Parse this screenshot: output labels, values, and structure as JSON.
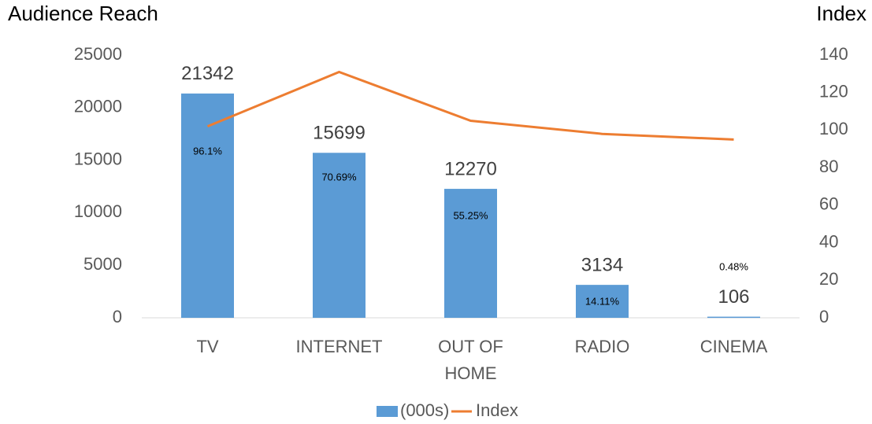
{
  "chart_data": {
    "type": "bar",
    "y_title": "Audience Reach",
    "y2_title": "Index",
    "categories": [
      "TV",
      "INTERNET",
      "OUT OF HOME",
      "RADIO",
      "CINEMA"
    ],
    "series": [
      {
        "name": "(000s)",
        "type": "bar",
        "color": "#5b9bd5",
        "values": [
          21342,
          15699,
          12270,
          3134,
          106
        ]
      },
      {
        "name": "Index",
        "type": "line",
        "axis": "y2",
        "color": "#ed7d31",
        "values": [
          102,
          131,
          105,
          98,
          95
        ]
      }
    ],
    "annotations": [
      "96.1%",
      "70.69%",
      "55.25%",
      "14.11%",
      "0.48%"
    ],
    "ylim": [
      0,
      25000
    ],
    "yticks": [
      0,
      5000,
      10000,
      15000,
      20000,
      25000
    ],
    "y2lim": [
      0,
      140
    ],
    "y2ticks": [
      0,
      20,
      40,
      60,
      80,
      100,
      120,
      140
    ],
    "grid": false,
    "legend": "bottom"
  }
}
